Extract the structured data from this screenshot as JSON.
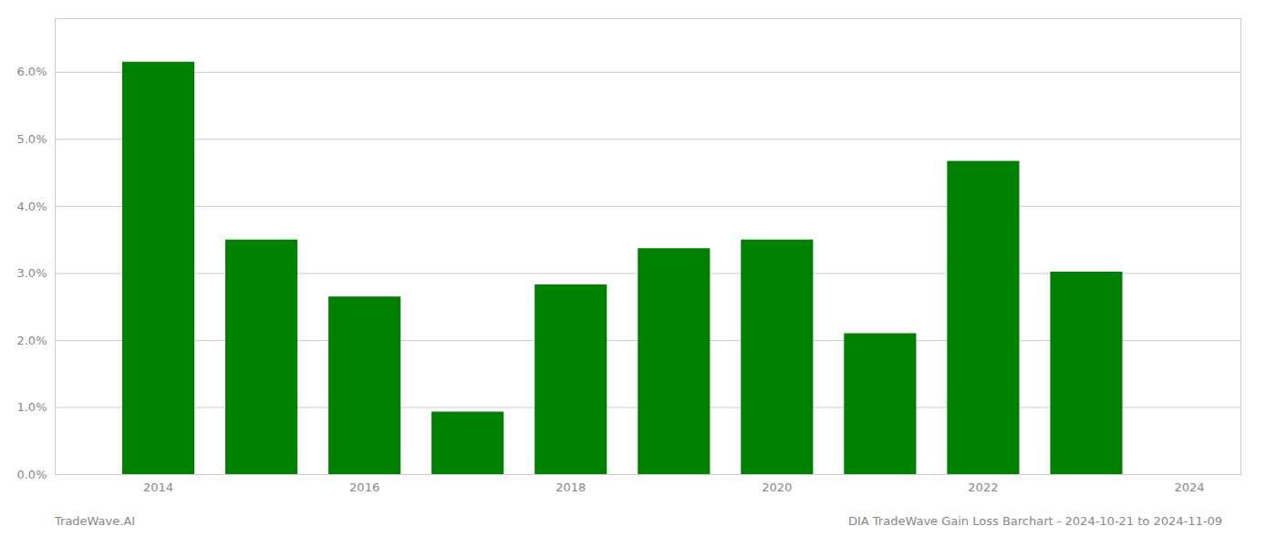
{
  "chart_data": {
    "type": "bar",
    "x": [
      2014,
      2015,
      2016,
      2017,
      2018,
      2019,
      2020,
      2021,
      2022,
      2023
    ],
    "values": [
      0.0615,
      0.035,
      0.0265,
      0.0093,
      0.0283,
      0.0337,
      0.035,
      0.021,
      0.0467,
      0.0302
    ],
    "color": "#008000",
    "xlim": [
      2013.0,
      2024.5
    ],
    "xticks": [
      2014,
      2016,
      2018,
      2020,
      2022,
      2024
    ],
    "ylim": [
      0.0,
      0.068
    ],
    "yticks": [
      {
        "value": 0.0,
        "label": "0.0%"
      },
      {
        "value": 0.01,
        "label": "1.0%"
      },
      {
        "value": 0.02,
        "label": "2.0%"
      },
      {
        "value": 0.03,
        "label": "3.0%"
      },
      {
        "value": 0.04,
        "label": "4.0%"
      },
      {
        "value": 0.05,
        "label": "5.0%"
      },
      {
        "value": 0.06,
        "label": "6.0%"
      }
    ],
    "grid": true,
    "annotations": [
      "TradeWave.AI",
      "DIA TradeWave Gain Loss Barchart - 2024-10-21 to 2024-11-09"
    ]
  }
}
